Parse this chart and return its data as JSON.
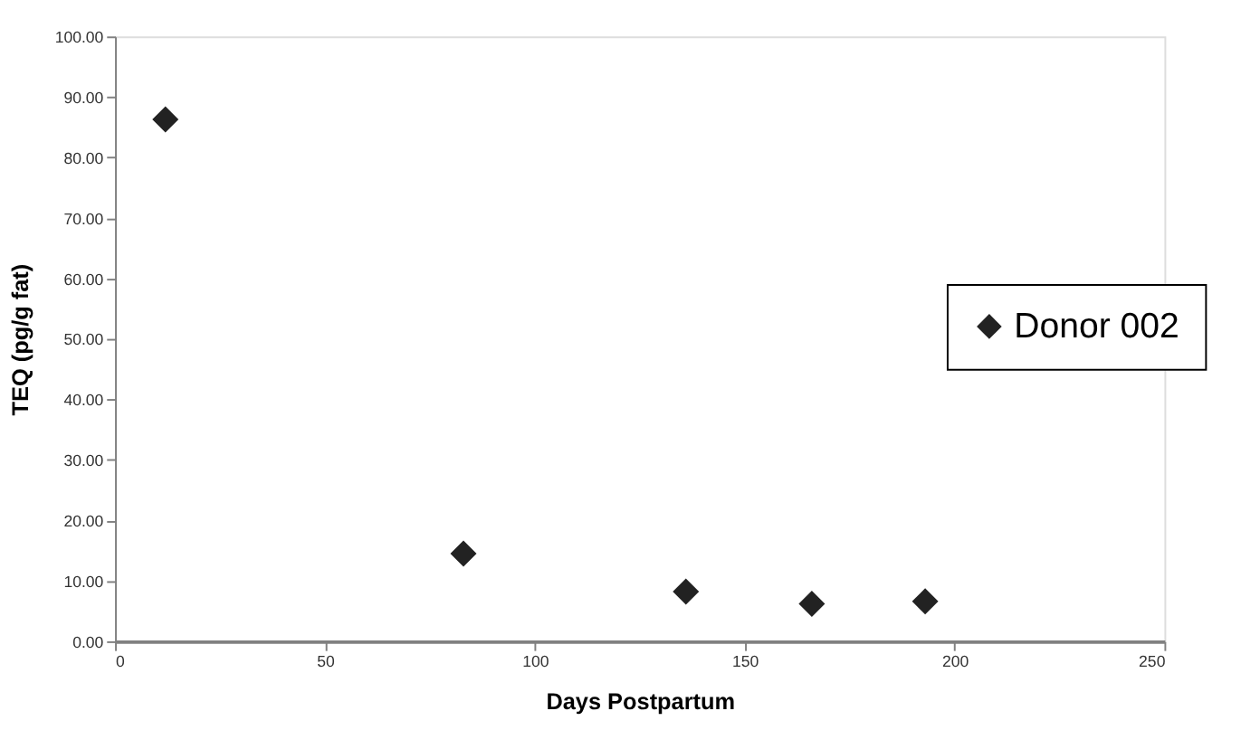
{
  "chart_data": {
    "type": "scatter",
    "xlabel": "Days Postpartum",
    "ylabel": "TEQ (pg/g fat)",
    "x": [
      12,
      83,
      136,
      166,
      193
    ],
    "series": [
      {
        "name": "Donor 002",
        "color": "#222222",
        "values": [
          86.3,
          14.5,
          8.2,
          6.2,
          6.6
        ]
      }
    ],
    "xlim": [
      0,
      250
    ],
    "xticks": [
      0,
      50,
      100,
      150,
      200,
      250
    ],
    "ylim": [
      0,
      100
    ],
    "yticks": [
      {
        "value": 0,
        "label": "0.00"
      },
      {
        "value": 10,
        "label": "10.00"
      },
      {
        "value": 20,
        "label": "20.00"
      },
      {
        "value": 30,
        "label": "30.00"
      },
      {
        "value": 40,
        "label": "40.00"
      },
      {
        "value": 50,
        "label": "50.00"
      },
      {
        "value": 60,
        "label": "60.00"
      },
      {
        "value": 70,
        "label": "70.00"
      },
      {
        "value": 80,
        "label": "80.00"
      },
      {
        "value": 90,
        "label": "90.00"
      },
      {
        "value": 100,
        "label": "100.00"
      }
    ],
    "marker": "diamond",
    "grid": false,
    "legend": "right"
  }
}
